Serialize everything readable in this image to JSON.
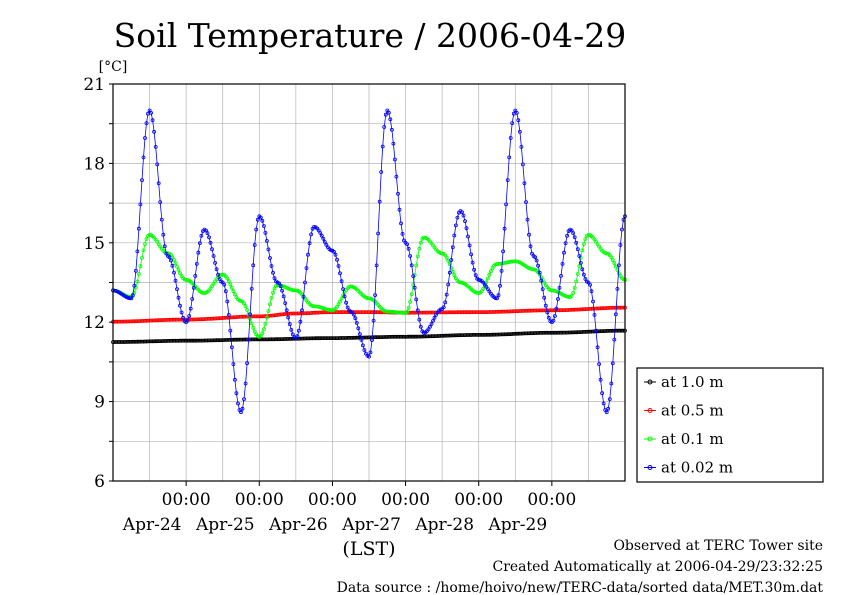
{
  "chart_data": {
    "type": "line",
    "title": "Soil Temperature / 2006-04-29",
    "ylabel": "[°C]",
    "xlabel": "(LST)",
    "ylim": [
      6,
      21
    ],
    "y_ticks": [
      6,
      9,
      12,
      15,
      18,
      21
    ],
    "xlim": [
      "2006-04-23T00:00",
      "2006-04-30T00:00"
    ],
    "x_ticks": [
      {
        "time_label": "00:00",
        "date_label": "Apr-24",
        "time": "2006-04-24T00:00"
      },
      {
        "time_label": "00:00",
        "date_label": "Apr-25",
        "time": "2006-04-25T00:00"
      },
      {
        "time_label": "00:00",
        "date_label": "Apr-26",
        "time": "2006-04-26T00:00"
      },
      {
        "time_label": "00:00",
        "date_label": "Apr-27",
        "time": "2006-04-27T00:00"
      },
      {
        "time_label": "00:00",
        "date_label": "Apr-28",
        "time": "2006-04-28T00:00"
      },
      {
        "time_label": "00:00",
        "date_label": "Apr-29",
        "time": "2006-04-29T00:00"
      }
    ],
    "grid": true,
    "legend_position": "right",
    "series": [
      {
        "name": "at 1.0 m",
        "color": "#000000",
        "x": [
          "2006-04-23T00:00",
          "2006-04-24T00:00",
          "2006-04-25T00:00",
          "2006-04-26T00:00",
          "2006-04-27T00:00",
          "2006-04-28T00:00",
          "2006-04-29T00:00",
          "2006-04-30T00:00"
        ],
        "y": [
          11.25,
          11.3,
          11.35,
          11.4,
          11.45,
          11.52,
          11.6,
          11.68
        ]
      },
      {
        "name": "at 0.5 m",
        "color": "#ff0000",
        "x": [
          "2006-04-23T00:00",
          "2006-04-24T00:00",
          "2006-04-25T00:00",
          "2006-04-25T12:00",
          "2006-04-26T00:00",
          "2006-04-26T12:00",
          "2006-04-27T00:00",
          "2006-04-28T00:00",
          "2006-04-29T00:00",
          "2006-04-30T00:00"
        ],
        "y": [
          12.02,
          12.1,
          12.22,
          12.33,
          12.38,
          12.38,
          12.36,
          12.38,
          12.45,
          12.55
        ]
      },
      {
        "name": "at 0.1 m",
        "color": "#00ff00",
        "x": [
          "2006-04-23T00:00",
          "2006-04-23T06:00",
          "2006-04-23T12:00",
          "2006-04-23T18:00",
          "2006-04-24T00:00",
          "2006-04-24T06:00",
          "2006-04-24T12:00",
          "2006-04-24T18:00",
          "2006-04-25T00:00",
          "2006-04-25T06:00",
          "2006-04-25T12:00",
          "2006-04-25T18:00",
          "2006-04-26T00:00",
          "2006-04-26T06:00",
          "2006-04-26T12:00",
          "2006-04-26T18:00",
          "2006-04-27T00:00",
          "2006-04-27T06:00",
          "2006-04-27T12:00",
          "2006-04-27T18:00",
          "2006-04-28T00:00",
          "2006-04-28T06:00",
          "2006-04-28T12:00",
          "2006-04-28T18:00",
          "2006-04-29T00:00",
          "2006-04-29T06:00",
          "2006-04-29T12:00",
          "2006-04-29T18:00",
          "2006-04-30T00:00"
        ],
        "y": [
          13.2,
          12.95,
          15.3,
          14.6,
          13.6,
          13.1,
          13.8,
          12.8,
          11.45,
          13.4,
          13.2,
          12.6,
          12.45,
          13.35,
          12.9,
          12.4,
          12.35,
          15.2,
          14.6,
          13.5,
          13.1,
          14.2,
          14.3,
          14.0,
          13.2,
          12.95,
          15.3,
          14.6,
          13.6
        ]
      },
      {
        "name": "at 0.02 m",
        "color": "#0000ff",
        "x": [
          "2006-04-23T00:00",
          "2006-04-23T06:00",
          "2006-04-23T12:00",
          "2006-04-23T18:00",
          "2006-04-24T00:00",
          "2006-04-24T06:00",
          "2006-04-24T12:00",
          "2006-04-24T18:00",
          "2006-04-25T00:00",
          "2006-04-25T06:00",
          "2006-04-25T12:00",
          "2006-04-25T18:00",
          "2006-04-26T00:00",
          "2006-04-26T06:00",
          "2006-04-26T12:00",
          "2006-04-26T18:00",
          "2006-04-27T00:00",
          "2006-04-27T06:00",
          "2006-04-27T12:00",
          "2006-04-27T18:00",
          "2006-04-28T00:00",
          "2006-04-28T06:00",
          "2006-04-28T12:00",
          "2006-04-28T18:00",
          "2006-04-29T00:00",
          "2006-04-29T06:00",
          "2006-04-29T12:00",
          "2006-04-29T18:00",
          "2006-04-30T00:00"
        ],
        "y": [
          13.2,
          12.9,
          20.0,
          14.5,
          12.0,
          15.5,
          13.5,
          8.6,
          16.0,
          13.5,
          11.4,
          15.6,
          14.7,
          12.4,
          10.7,
          20.0,
          15.0,
          11.6,
          12.5,
          16.2,
          13.6,
          12.9,
          20.0,
          14.5,
          12.0,
          15.5,
          13.5,
          8.6,
          16.0
        ]
      }
    ]
  },
  "footer": {
    "observed": "Observed at TERC Tower site",
    "created": "Created Automatically at 2006-04-29/23:32:25",
    "source": "Data source : /home/hoivo/new/TERC-data/sorted  data/MET.30m.dat"
  }
}
